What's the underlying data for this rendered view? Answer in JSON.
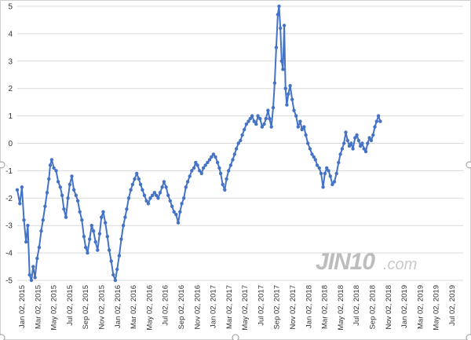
{
  "chart_data": {
    "type": "line",
    "title": "",
    "xlabel": "",
    "ylabel": "",
    "ylim": [
      -5,
      5
    ],
    "y_ticks": [
      5,
      4,
      3,
      2,
      1,
      0,
      -1,
      -2,
      -3,
      -4,
      -5
    ],
    "grid": "horizontal",
    "series_color": "#4472c4",
    "x_tick_labels": [
      "Jan 02, 2015",
      "Mar 02, 2015",
      "May 02, 2015",
      "Jul 02, 2015",
      "Sep 02, 2015",
      "Nov 02, 2015",
      "Jan 02, 2016",
      "Mar 02, 2016",
      "May 02, 2016",
      "Jul 02, 2016",
      "Sep 02, 2016",
      "Nov 02, 2016",
      "Jan 02, 2017",
      "Mar 02, 2017",
      "May 02, 2017",
      "Jul 02, 2017",
      "Sep 02, 2017",
      "Nov 02, 2017",
      "Jan 02, 2018",
      "Mar 02, 2018",
      "May 02, 2018",
      "Jul 02, 2018",
      "Sep 02, 2018",
      "Nov 02, 2018",
      "Jan 02, 2019",
      "Mar 02, 2019",
      "May 02, 2019",
      "Jul 02, 2019"
    ],
    "series": [
      {
        "values": [
          [
            "2015-01-02",
            -1.7
          ],
          [
            "2015-01-12",
            -2.2
          ],
          [
            "2015-01-20",
            -1.6
          ],
          [
            "2015-01-28",
            -2.8
          ],
          [
            "2015-02-05",
            -3.6
          ],
          [
            "2015-02-12",
            -3.0
          ],
          [
            "2015-02-19",
            -4.8
          ],
          [
            "2015-02-26",
            -5.0
          ],
          [
            "2015-03-05",
            -4.5
          ],
          [
            "2015-03-12",
            -4.9
          ],
          [
            "2015-03-20",
            -4.2
          ],
          [
            "2015-03-28",
            -3.8
          ],
          [
            "2015-04-05",
            -3.2
          ],
          [
            "2015-04-12",
            -2.8
          ],
          [
            "2015-04-20",
            -2.3
          ],
          [
            "2015-04-28",
            -1.8
          ],
          [
            "2015-05-05",
            -1.3
          ],
          [
            "2015-05-10",
            -0.8
          ],
          [
            "2015-05-16",
            -0.6
          ],
          [
            "2015-05-24",
            -0.9
          ],
          [
            "2015-06-02",
            -1.0
          ],
          [
            "2015-06-10",
            -1.4
          ],
          [
            "2015-06-18",
            -1.6
          ],
          [
            "2015-06-25",
            -1.9
          ],
          [
            "2015-07-02",
            -2.4
          ],
          [
            "2015-07-10",
            -2.7
          ],
          [
            "2015-07-18",
            -2.0
          ],
          [
            "2015-07-25",
            -1.5
          ],
          [
            "2015-08-02",
            -1.2
          ],
          [
            "2015-08-10",
            -1.7
          ],
          [
            "2015-08-18",
            -1.9
          ],
          [
            "2015-08-25",
            -2.1
          ],
          [
            "2015-09-02",
            -2.5
          ],
          [
            "2015-09-10",
            -2.8
          ],
          [
            "2015-09-18",
            -3.4
          ],
          [
            "2015-09-25",
            -3.8
          ],
          [
            "2015-10-02",
            -4.0
          ],
          [
            "2015-10-10",
            -3.5
          ],
          [
            "2015-10-18",
            -3.0
          ],
          [
            "2015-10-25",
            -3.2
          ],
          [
            "2015-11-02",
            -3.6
          ],
          [
            "2015-11-10",
            -3.9
          ],
          [
            "2015-11-18",
            -3.3
          ],
          [
            "2015-11-25",
            -2.7
          ],
          [
            "2015-12-02",
            -2.5
          ],
          [
            "2015-12-10",
            -2.9
          ],
          [
            "2015-12-18",
            -3.4
          ],
          [
            "2015-12-25",
            -3.9
          ],
          [
            "2016-01-02",
            -4.3
          ],
          [
            "2016-01-10",
            -4.8
          ],
          [
            "2016-01-18",
            -5.0
          ],
          [
            "2016-01-25",
            -4.6
          ],
          [
            "2016-02-02",
            -4.1
          ],
          [
            "2016-02-10",
            -3.5
          ],
          [
            "2016-02-18",
            -3.0
          ],
          [
            "2016-02-25",
            -2.7
          ],
          [
            "2016-03-02",
            -2.4
          ],
          [
            "2016-03-10",
            -2.0
          ],
          [
            "2016-03-18",
            -1.7
          ],
          [
            "2016-03-25",
            -1.5
          ],
          [
            "2016-04-02",
            -1.3
          ],
          [
            "2016-04-10",
            -1.1
          ],
          [
            "2016-04-18",
            -1.3
          ],
          [
            "2016-04-25",
            -1.5
          ],
          [
            "2016-05-02",
            -1.7
          ],
          [
            "2016-05-10",
            -1.9
          ],
          [
            "2016-05-18",
            -2.1
          ],
          [
            "2016-05-25",
            -2.2
          ],
          [
            "2016-06-02",
            -2.0
          ],
          [
            "2016-06-10",
            -1.9
          ],
          [
            "2016-06-18",
            -1.8
          ],
          [
            "2016-06-25",
            -1.9
          ],
          [
            "2016-07-02",
            -2.0
          ],
          [
            "2016-07-10",
            -1.8
          ],
          [
            "2016-07-18",
            -1.6
          ],
          [
            "2016-07-25",
            -1.4
          ],
          [
            "2016-08-02",
            -1.6
          ],
          [
            "2016-08-10",
            -1.9
          ],
          [
            "2016-08-18",
            -2.1
          ],
          [
            "2016-08-25",
            -2.3
          ],
          [
            "2016-09-02",
            -2.5
          ],
          [
            "2016-09-10",
            -2.6
          ],
          [
            "2016-09-18",
            -2.9
          ],
          [
            "2016-09-25",
            -2.5
          ],
          [
            "2016-10-02",
            -2.2
          ],
          [
            "2016-10-10",
            -2.0
          ],
          [
            "2016-10-18",
            -1.6
          ],
          [
            "2016-10-25",
            -1.4
          ],
          [
            "2016-11-02",
            -1.2
          ],
          [
            "2016-11-10",
            -1.0
          ],
          [
            "2016-11-18",
            -0.9
          ],
          [
            "2016-11-25",
            -0.7
          ],
          [
            "2016-12-02",
            -0.8
          ],
          [
            "2016-12-10",
            -1.0
          ],
          [
            "2016-12-18",
            -1.1
          ],
          [
            "2016-12-25",
            -0.9
          ],
          [
            "2017-01-02",
            -0.8
          ],
          [
            "2017-01-10",
            -0.7
          ],
          [
            "2017-01-18",
            -0.6
          ],
          [
            "2017-01-25",
            -0.5
          ],
          [
            "2017-02-02",
            -0.4
          ],
          [
            "2017-02-10",
            -0.5
          ],
          [
            "2017-02-18",
            -0.7
          ],
          [
            "2017-02-25",
            -0.9
          ],
          [
            "2017-03-02",
            -1.1
          ],
          [
            "2017-03-10",
            -1.5
          ],
          [
            "2017-03-18",
            -1.7
          ],
          [
            "2017-03-25",
            -1.3
          ],
          [
            "2017-04-02",
            -1.0
          ],
          [
            "2017-04-10",
            -0.8
          ],
          [
            "2017-04-18",
            -0.6
          ],
          [
            "2017-04-25",
            -0.4
          ],
          [
            "2017-05-02",
            -0.2
          ],
          [
            "2017-05-10",
            0.0
          ],
          [
            "2017-05-18",
            0.1
          ],
          [
            "2017-05-25",
            0.3
          ],
          [
            "2017-06-02",
            0.5
          ],
          [
            "2017-06-10",
            0.7
          ],
          [
            "2017-06-18",
            0.8
          ],
          [
            "2017-06-25",
            0.9
          ],
          [
            "2017-07-02",
            1.0
          ],
          [
            "2017-07-10",
            0.8
          ],
          [
            "2017-07-18",
            0.7
          ],
          [
            "2017-07-25",
            1.0
          ],
          [
            "2017-08-02",
            0.9
          ],
          [
            "2017-08-10",
            0.6
          ],
          [
            "2017-08-18",
            0.7
          ],
          [
            "2017-08-25",
            0.9
          ],
          [
            "2017-09-02",
            1.2
          ],
          [
            "2017-09-08",
            0.9
          ],
          [
            "2017-09-15",
            0.6
          ],
          [
            "2017-09-22",
            1.3
          ],
          [
            "2017-09-28",
            2.2
          ],
          [
            "2017-10-04",
            3.5
          ],
          [
            "2017-10-10",
            4.7
          ],
          [
            "2017-10-15",
            5.0
          ],
          [
            "2017-10-20",
            4.2
          ],
          [
            "2017-10-25",
            3.0
          ],
          [
            "2017-10-30",
            2.7
          ],
          [
            "2017-11-04",
            4.3
          ],
          [
            "2017-11-09",
            2.0
          ],
          [
            "2017-11-14",
            1.4
          ],
          [
            "2017-11-20",
            1.8
          ],
          [
            "2017-11-27",
            2.1
          ],
          [
            "2017-12-05",
            1.6
          ],
          [
            "2017-12-12",
            1.2
          ],
          [
            "2017-12-20",
            1.0
          ],
          [
            "2017-12-28",
            0.6
          ],
          [
            "2018-01-05",
            0.8
          ],
          [
            "2018-01-12",
            0.5
          ],
          [
            "2018-01-20",
            0.6
          ],
          [
            "2018-01-27",
            0.3
          ],
          [
            "2018-02-04",
            0.0
          ],
          [
            "2018-02-12",
            -0.2
          ],
          [
            "2018-02-20",
            -0.4
          ],
          [
            "2018-02-27",
            -0.5
          ],
          [
            "2018-03-05",
            -0.6
          ],
          [
            "2018-03-12",
            -0.8
          ],
          [
            "2018-03-20",
            -0.9
          ],
          [
            "2018-03-27",
            -1.1
          ],
          [
            "2018-04-04",
            -1.6
          ],
          [
            "2018-04-11",
            -1.1
          ],
          [
            "2018-04-18",
            -0.9
          ],
          [
            "2018-04-25",
            -1.0
          ],
          [
            "2018-05-02",
            -1.2
          ],
          [
            "2018-05-10",
            -1.5
          ],
          [
            "2018-05-18",
            -1.4
          ],
          [
            "2018-05-26",
            -1.1
          ],
          [
            "2018-06-03",
            -0.7
          ],
          [
            "2018-06-10",
            -0.4
          ],
          [
            "2018-06-17",
            -0.2
          ],
          [
            "2018-06-24",
            0.0
          ],
          [
            "2018-07-01",
            0.4
          ],
          [
            "2018-07-08",
            0.1
          ],
          [
            "2018-07-15",
            -0.1
          ],
          [
            "2018-07-22",
            0.0
          ],
          [
            "2018-07-29",
            -0.2
          ],
          [
            "2018-08-06",
            0.2
          ],
          [
            "2018-08-13",
            0.3
          ],
          [
            "2018-08-20",
            0.1
          ],
          [
            "2018-08-27",
            -0.1
          ],
          [
            "2018-09-03",
            0.0
          ],
          [
            "2018-09-10",
            -0.2
          ],
          [
            "2018-09-17",
            -0.3
          ],
          [
            "2018-09-24",
            0.0
          ],
          [
            "2018-10-01",
            0.2
          ],
          [
            "2018-10-08",
            0.1
          ],
          [
            "2018-10-15",
            0.3
          ],
          [
            "2018-10-22",
            0.6
          ],
          [
            "2018-10-29",
            0.8
          ],
          [
            "2018-11-05",
            1.0
          ],
          [
            "2018-11-12",
            0.8
          ]
        ]
      }
    ]
  },
  "watermark": {
    "brand": "JIN10",
    "suffix": ".com"
  }
}
